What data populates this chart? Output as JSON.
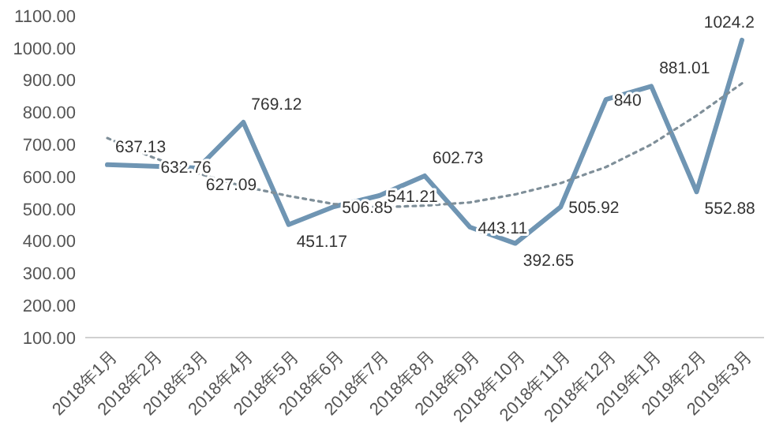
{
  "chart_data": {
    "type": "line",
    "categories": [
      "2018年1月",
      "2018年2月",
      "2018年3月",
      "2018年4月",
      "2018年5月",
      "2018年6月",
      "2018年7月",
      "2018年8月",
      "2018年9月",
      "2018年10月",
      "2018年11月",
      "2018年12月",
      "2019年1月",
      "2019年2月",
      "2019年3月"
    ],
    "series": [
      {
        "color": "#6f95b3",
        "values": [
          637.13,
          632.76,
          627.09,
          769.12,
          451.17,
          506.85,
          541.21,
          602.73,
          443.11,
          392.65,
          505.92,
          840,
          881.01,
          552.88,
          1024.2
        ],
        "value_labels": [
          "637.13",
          "632.76",
          "627.09",
          "769.12",
          "451.17",
          "506.85",
          "541.21",
          "602.73",
          "443.11",
          "392.65",
          "505.92",
          "840",
          "881.01",
          "552.88",
          "1024.2"
        ]
      },
      {
        "type": "line",
        "color": "#7f8f99",
        "line_style": "dotted",
        "values": [
          720,
          660,
          610,
          570,
          540,
          515,
          505,
          510,
          520,
          545,
          580,
          630,
          700,
          790,
          890
        ]
      }
    ],
    "ylim": [
      100,
      1100
    ],
    "yticks": [
      {
        "value": 100,
        "label": "100.00"
      },
      {
        "value": 200,
        "label": "200.00"
      },
      {
        "value": 300,
        "label": "300.00"
      },
      {
        "value": 400,
        "label": "400.00"
      },
      {
        "value": 500,
        "label": "500.00"
      },
      {
        "value": 600,
        "label": "600.00"
      },
      {
        "value": 700,
        "label": "700.00"
      },
      {
        "value": 800,
        "label": "800.00"
      },
      {
        "value": 900,
        "label": "900.00"
      },
      {
        "value": 1000,
        "label": "1000.00"
      },
      {
        "value": 1100,
        "label": "1100.00"
      }
    ],
    "grid": false,
    "marker": "none"
  }
}
